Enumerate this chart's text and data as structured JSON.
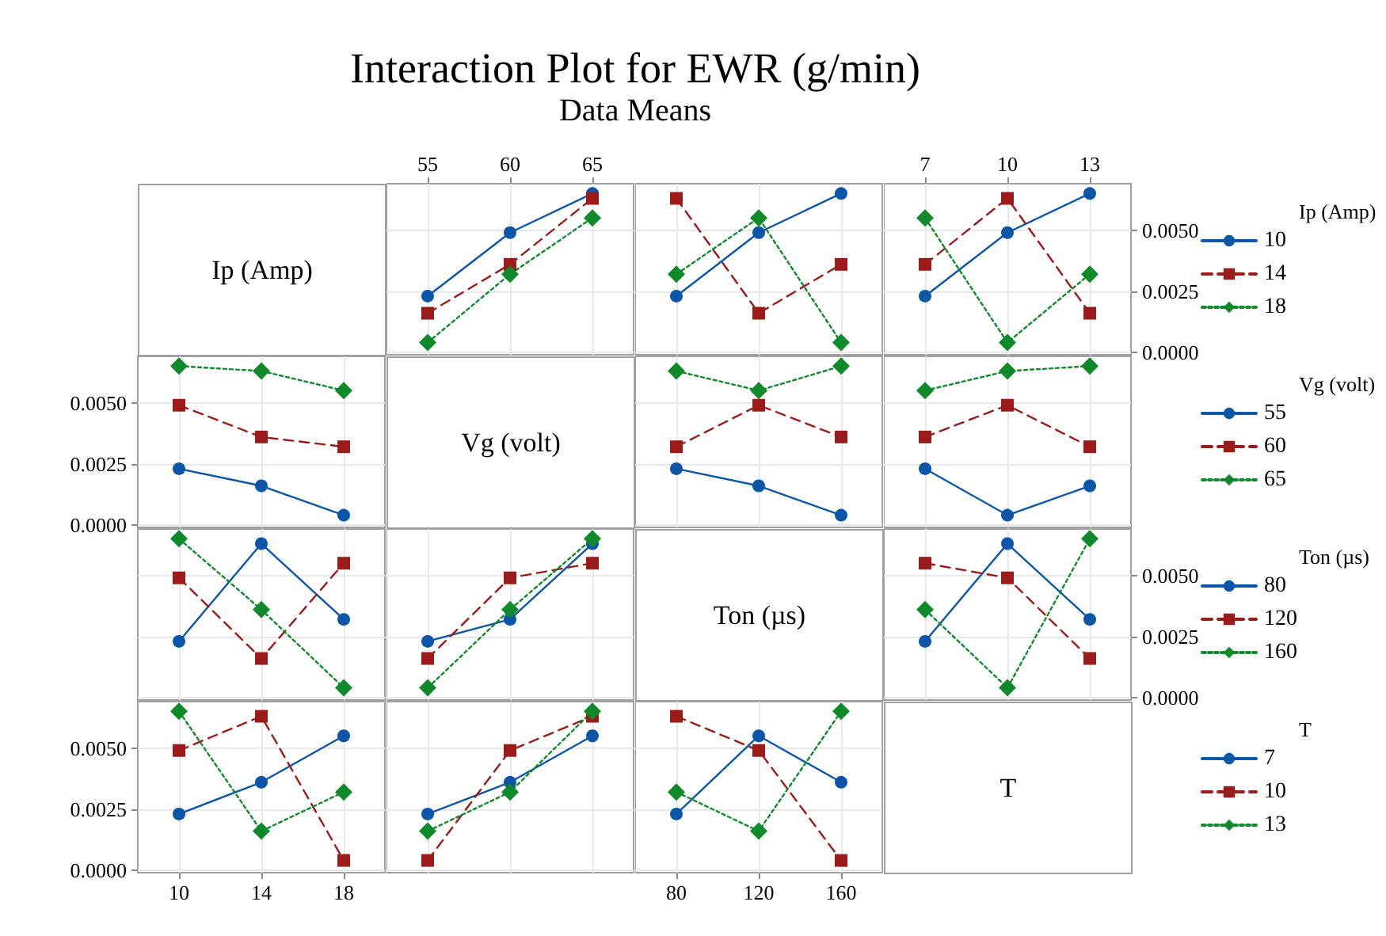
{
  "chart_data": [
    {
      "type": "other",
      "title": "Interaction Plot for EWR (g/min)",
      "subtitle": "Data Means"
    },
    {
      "type": "other",
      "title": "Ip (Amp)"
    },
    {
      "type": "line",
      "x": [
        55,
        60,
        65
      ],
      "xlim": [
        52.5,
        67.5
      ],
      "xticks": [
        55,
        60,
        65
      ],
      "ylim": [
        -0.0001,
        0.0069
      ],
      "yticks": [
        0,
        0.0025,
        0.005
      ],
      "grid": true,
      "tick_labels": "x",
      "series": [
        {
          "color": "#0b56a8",
          "marker": "circle",
          "line_style": "solid",
          "values": [
            0.0023,
            0.0049,
            0.0065
          ]
        },
        {
          "color": "#9b1b1b",
          "marker": "square",
          "line_style": "dashed",
          "values": [
            0.0016,
            0.0036,
            0.0063
          ]
        },
        {
          "color": "#0f8a2a",
          "marker": "diamond",
          "line_style": "dotted",
          "values": [
            0.0004,
            0.0032,
            0.0055
          ]
        }
      ]
    },
    {
      "type": "line",
      "x": [
        80,
        120,
        160
      ],
      "xlim": [
        60,
        180
      ],
      "xticks": [
        80,
        120,
        160
      ],
      "ylim": [
        -0.0001,
        0.0069
      ],
      "yticks": [
        0,
        0.0025,
        0.005
      ],
      "grid": true,
      "tick_labels": false,
      "series": [
        {
          "color": "#0b56a8",
          "marker": "circle",
          "line_style": "solid",
          "values": [
            0.0023,
            0.0049,
            0.0065
          ]
        },
        {
          "color": "#9b1b1b",
          "marker": "square",
          "line_style": "dashed",
          "values": [
            0.0063,
            0.0016,
            0.0036
          ]
        },
        {
          "color": "#0f8a2a",
          "marker": "diamond",
          "line_style": "dotted",
          "values": [
            0.0032,
            0.0055,
            0.0004
          ]
        }
      ]
    },
    {
      "type": "line",
      "x": [
        7,
        10,
        13
      ],
      "xlim": [
        5.5,
        14.5
      ],
      "xticks": [
        7,
        10,
        13
      ],
      "ylim": [
        -0.0001,
        0.0069
      ],
      "yticks": [
        {
          "value": 0,
          "label": "0.0000"
        },
        {
          "value": 0.0025,
          "label": "0.0025"
        },
        {
          "value": 0.005,
          "label": "0.0050"
        }
      ],
      "grid": true,
      "legend": "right",
      "legend_title": "Ip (Amp)",
      "series": [
        {
          "name": "10",
          "color": "#0b56a8",
          "marker": "circle",
          "line_style": "solid",
          "values": [
            0.0023,
            0.0049,
            0.0065
          ]
        },
        {
          "name": "14",
          "color": "#9b1b1b",
          "marker": "square",
          "line_style": "dashed",
          "values": [
            0.0036,
            0.0063,
            0.0016
          ]
        },
        {
          "name": "18",
          "color": "#0f8a2a",
          "marker": "diamond",
          "line_style": "dotted",
          "values": [
            0.0055,
            0.0004,
            0.0032
          ]
        }
      ]
    },
    {
      "type": "line",
      "x": [
        10,
        14,
        18
      ],
      "xlim": [
        8,
        20
      ],
      "xticks": [
        10,
        14,
        18
      ],
      "ylim": [
        -0.0001,
        0.0069
      ],
      "yticks": [
        {
          "value": 0,
          "label": "0.0000"
        },
        {
          "value": 0.0025,
          "label": "0.0025"
        },
        {
          "value": 0.005,
          "label": "0.0050"
        }
      ],
      "grid": true,
      "tick_labels": "y",
      "series": [
        {
          "color": "#0b56a8",
          "marker": "circle",
          "line_style": "solid",
          "values": [
            0.0023,
            0.0016,
            0.0004
          ]
        },
        {
          "color": "#9b1b1b",
          "marker": "square",
          "line_style": "dashed",
          "values": [
            0.0049,
            0.0036,
            0.0032
          ]
        },
        {
          "color": "#0f8a2a",
          "marker": "diamond",
          "line_style": "dotted",
          "values": [
            0.0065,
            0.0063,
            0.0055
          ]
        }
      ]
    },
    {
      "type": "other",
      "title": "Vg (volt)"
    },
    {
      "type": "line",
      "x": [
        80,
        120,
        160
      ],
      "xlim": [
        60,
        180
      ],
      "xticks": [
        80,
        120,
        160
      ],
      "ylim": [
        -0.0001,
        0.0069
      ],
      "yticks": [
        0,
        0.0025,
        0.005
      ],
      "grid": true,
      "tick_labels": false,
      "series": [
        {
          "color": "#0b56a8",
          "marker": "circle",
          "line_style": "solid",
          "values": [
            0.0023,
            0.0016,
            0.0004
          ]
        },
        {
          "color": "#9b1b1b",
          "marker": "square",
          "line_style": "dashed",
          "values": [
            0.0032,
            0.0049,
            0.0036
          ]
        },
        {
          "color": "#0f8a2a",
          "marker": "diamond",
          "line_style": "dotted",
          "values": [
            0.0063,
            0.0055,
            0.0065
          ]
        }
      ]
    },
    {
      "type": "line",
      "x": [
        7,
        10,
        13
      ],
      "xlim": [
        5.5,
        14.5
      ],
      "xticks": [
        7,
        10,
        13
      ],
      "ylim": [
        -0.0001,
        0.0069
      ],
      "yticks": [
        0,
        0.0025,
        0.005
      ],
      "grid": true,
      "tick_labels": false,
      "legend": "right",
      "legend_title": "Vg (volt)",
      "series": [
        {
          "name": "55",
          "color": "#0b56a8",
          "marker": "circle",
          "line_style": "solid",
          "values": [
            0.0023,
            0.0004,
            0.0016
          ]
        },
        {
          "name": "60",
          "color": "#9b1b1b",
          "marker": "square",
          "line_style": "dashed",
          "values": [
            0.0036,
            0.0049,
            0.0032
          ]
        },
        {
          "name": "65",
          "color": "#0f8a2a",
          "marker": "diamond",
          "line_style": "dotted",
          "values": [
            0.0055,
            0.0063,
            0.0065
          ]
        }
      ]
    },
    {
      "type": "line",
      "x": [
        10,
        14,
        18
      ],
      "xlim": [
        8,
        20
      ],
      "xticks": [
        10,
        14,
        18
      ],
      "ylim": [
        -0.0001,
        0.0069
      ],
      "yticks": [
        0,
        0.0025,
        0.005
      ],
      "grid": true,
      "tick_labels": false,
      "series": [
        {
          "color": "#0b56a8",
          "marker": "circle",
          "line_style": "solid",
          "values": [
            0.0023,
            0.0063,
            0.0032
          ]
        },
        {
          "color": "#9b1b1b",
          "marker": "square",
          "line_style": "dashed",
          "values": [
            0.0049,
            0.0016,
            0.0055
          ]
        },
        {
          "color": "#0f8a2a",
          "marker": "diamond",
          "line_style": "dotted",
          "values": [
            0.0065,
            0.0036,
            0.0004
          ]
        }
      ]
    },
    {
      "type": "line",
      "x": [
        55,
        60,
        65
      ],
      "xlim": [
        52.5,
        67.5
      ],
      "xticks": [
        55,
        60,
        65
      ],
      "ylim": [
        -0.0001,
        0.0069
      ],
      "yticks": [
        0,
        0.0025,
        0.005
      ],
      "grid": true,
      "tick_labels": false,
      "series": [
        {
          "color": "#0b56a8",
          "marker": "circle",
          "line_style": "solid",
          "values": [
            0.0023,
            0.0032,
            0.0063
          ]
        },
        {
          "color": "#9b1b1b",
          "marker": "square",
          "line_style": "dashed",
          "values": [
            0.0016,
            0.0049,
            0.0055
          ]
        },
        {
          "color": "#0f8a2a",
          "marker": "diamond",
          "line_style": "dotted",
          "values": [
            0.0004,
            0.0036,
            0.0065
          ]
        }
      ]
    },
    {
      "type": "other",
      "title": "Ton (µs)"
    },
    {
      "type": "line",
      "x": [
        7,
        10,
        13
      ],
      "xlim": [
        5.5,
        14.5
      ],
      "xticks": [
        7,
        10,
        13
      ],
      "ylim": [
        -0.0001,
        0.0069
      ],
      "yticks": [
        {
          "value": 0,
          "label": "0.0000"
        },
        {
          "value": 0.0025,
          "label": "0.0025"
        },
        {
          "value": 0.005,
          "label": "0.0050"
        }
      ],
      "grid": true,
      "tick_labels": "y",
      "legend": "right",
      "legend_title": "Ton (µs)",
      "series": [
        {
          "name": "80",
          "color": "#0b56a8",
          "marker": "circle",
          "line_style": "solid",
          "values": [
            0.0023,
            0.0063,
            0.0032
          ]
        },
        {
          "name": "120",
          "color": "#9b1b1b",
          "marker": "square",
          "line_style": "dashed",
          "values": [
            0.0055,
            0.0049,
            0.0016
          ]
        },
        {
          "name": "160",
          "color": "#0f8a2a",
          "marker": "diamond",
          "line_style": "dotted",
          "values": [
            0.0036,
            0.0004,
            0.0065
          ]
        }
      ]
    },
    {
      "type": "line",
      "x": [
        10,
        14,
        18
      ],
      "xlim": [
        8,
        20
      ],
      "xticks": [
        10,
        14,
        18
      ],
      "ylim": [
        -0.0001,
        0.0069
      ],
      "yticks": [
        {
          "value": 0,
          "label": "0.0000"
        },
        {
          "value": 0.0025,
          "label": "0.0025"
        },
        {
          "value": 0.005,
          "label": "0.0050"
        }
      ],
      "grid": true,
      "series": [
        {
          "color": "#0b56a8",
          "marker": "circle",
          "line_style": "solid",
          "values": [
            0.0023,
            0.0036,
            0.0055
          ]
        },
        {
          "color": "#9b1b1b",
          "marker": "square",
          "line_style": "dashed",
          "values": [
            0.0049,
            0.0063,
            0.0004
          ]
        },
        {
          "color": "#0f8a2a",
          "marker": "diamond",
          "line_style": "dotted",
          "values": [
            0.0065,
            0.0016,
            0.0032
          ]
        }
      ]
    },
    {
      "type": "line",
      "x": [
        55,
        60,
        65
      ],
      "xlim": [
        52.5,
        67.5
      ],
      "xticks": [
        55,
        60,
        65
      ],
      "ylim": [
        -0.0001,
        0.0069
      ],
      "yticks": [
        0,
        0.0025,
        0.005
      ],
      "grid": true,
      "tick_labels": false,
      "series": [
        {
          "color": "#0b56a8",
          "marker": "circle",
          "line_style": "solid",
          "values": [
            0.0023,
            0.0036,
            0.0055
          ]
        },
        {
          "color": "#9b1b1b",
          "marker": "square",
          "line_style": "dashed",
          "values": [
            0.0004,
            0.0049,
            0.0063
          ]
        },
        {
          "color": "#0f8a2a",
          "marker": "diamond",
          "line_style": "dotted",
          "values": [
            0.0016,
            0.0032,
            0.0065
          ]
        }
      ]
    },
    {
      "type": "line",
      "x": [
        80,
        120,
        160
      ],
      "xlim": [
        60,
        180
      ],
      "xticks": [
        80,
        120,
        160
      ],
      "ylim": [
        -0.0001,
        0.0069
      ],
      "yticks": [
        0,
        0.0025,
        0.005
      ],
      "grid": true,
      "tick_labels": "x",
      "legend": "right",
      "legend_title": "T",
      "series": [
        {
          "name": "7",
          "color": "#0b56a8",
          "marker": "circle",
          "line_style": "solid",
          "values": [
            0.0023,
            0.0055,
            0.0036
          ]
        },
        {
          "name": "10",
          "color": "#9b1b1b",
          "marker": "square",
          "line_style": "dashed",
          "values": [
            0.0063,
            0.0049,
            0.0004
          ]
        },
        {
          "name": "13",
          "color": "#0f8a2a",
          "marker": "diamond",
          "line_style": "dotted",
          "values": [
            0.0032,
            0.0016,
            0.0065
          ]
        }
      ]
    },
    {
      "type": "other",
      "title": "T"
    }
  ]
}
